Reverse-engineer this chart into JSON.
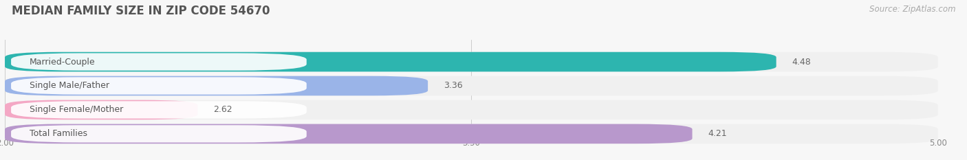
{
  "title": "MEDIAN FAMILY SIZE IN ZIP CODE 54670",
  "source": "Source: ZipAtlas.com",
  "categories": [
    "Married-Couple",
    "Single Male/Father",
    "Single Female/Mother",
    "Total Families"
  ],
  "values": [
    4.48,
    3.36,
    2.62,
    4.21
  ],
  "bar_colors": [
    "#2db5af",
    "#9ab4e8",
    "#f4a8c5",
    "#b898cc"
  ],
  "row_bg_color": "#f0f0f0",
  "label_bg_color": "#ffffff",
  "xlim": [
    2.0,
    5.0
  ],
  "xticks": [
    2.0,
    3.5,
    5.0
  ],
  "background_color": "#f7f7f7",
  "title_fontsize": 12,
  "label_fontsize": 9,
  "value_fontsize": 9,
  "source_fontsize": 8.5
}
